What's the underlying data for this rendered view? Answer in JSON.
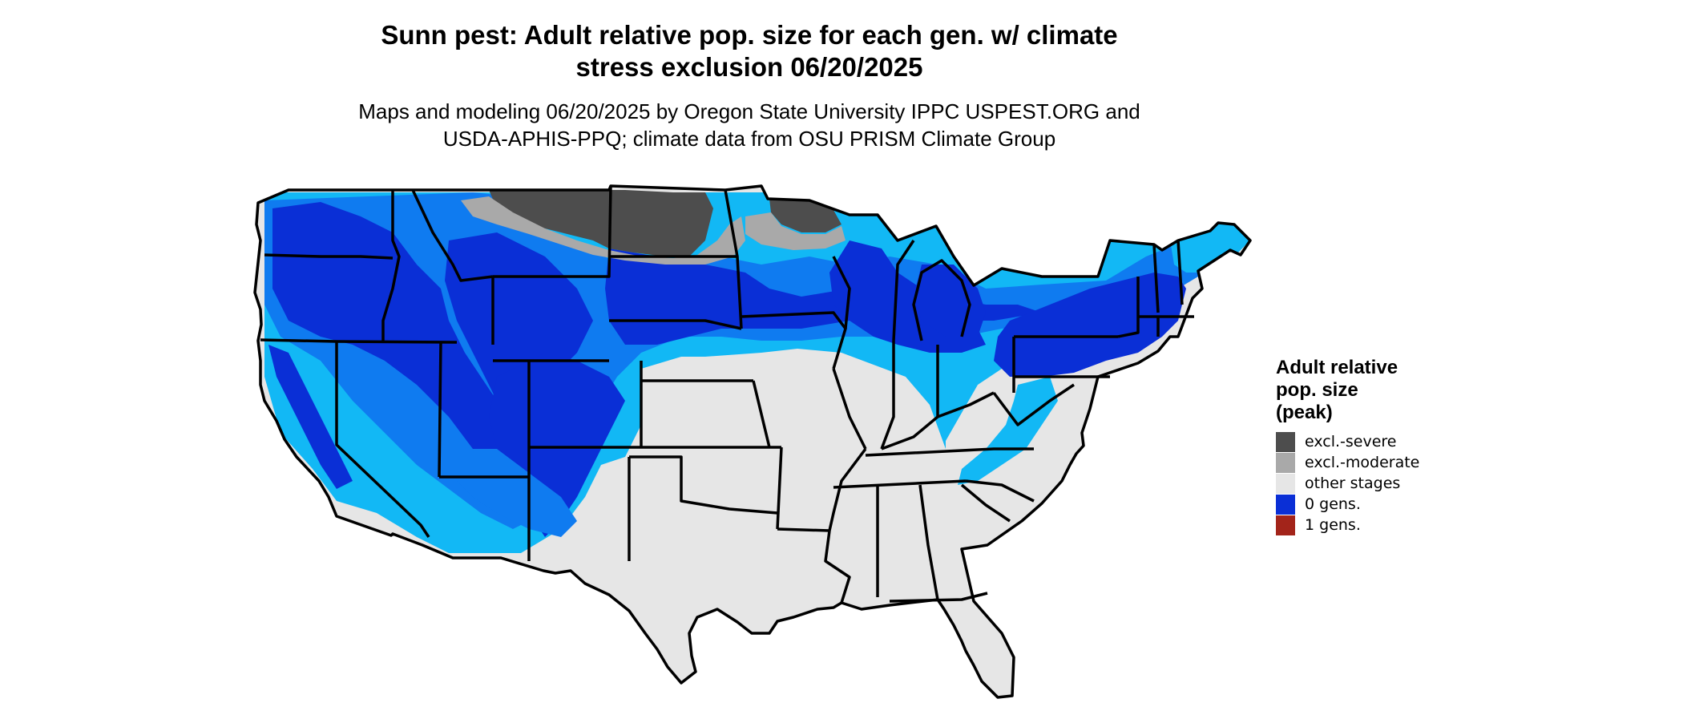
{
  "title": {
    "line1": "Sunn pest: Adult relative pop. size for each gen. w/ climate",
    "line2": "stress exclusion 06/20/2025"
  },
  "subtitle": {
    "line1": "Maps and modeling 06/20/2025 by Oregon State University IPPC USPEST.ORG and",
    "line2": "USDA-APHIS-PPQ; climate data from OSU PRISM Climate Group"
  },
  "legend": {
    "title_lines": [
      "Adult relative",
      "pop. size",
      "(peak)"
    ],
    "items": [
      {
        "label": "excl.-severe",
        "color": "#4d4d4d"
      },
      {
        "label": "excl.-moderate",
        "color": "#a9a9a9"
      },
      {
        "label": "other stages",
        "color": "#e6e6e6"
      },
      {
        "label": "0 gens.",
        "color": "#0a2fd6"
      },
      {
        "label": "1 gens.",
        "color": "#a3241a"
      }
    ]
  },
  "map": {
    "region": "contiguous-united-states",
    "palette": {
      "other_stages": "#e6e6e6",
      "excl_severe": "#4d4d4d",
      "excl_moderate": "#a9a9a9",
      "gens_0_dark": "#0a2fd6",
      "gens_0_mid": "#0f7bf0",
      "gens_0_light": "#12b8f5",
      "boundary": "#000000"
    }
  }
}
